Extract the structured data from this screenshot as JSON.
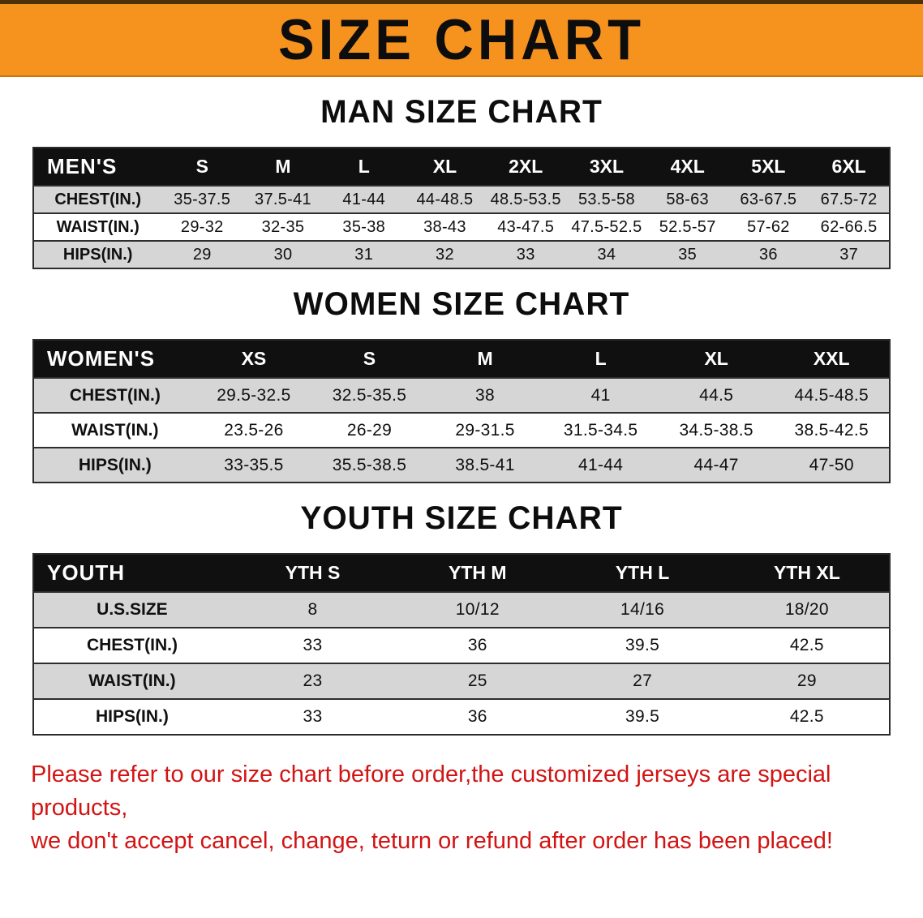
{
  "banner": {
    "title": "SIZE CHART",
    "bg_color": "#f6921e"
  },
  "sections": [
    {
      "heading": "MAN SIZE CHART",
      "table": {
        "header": [
          "MEN'S",
          "S",
          "M",
          "L",
          "XL",
          "2XL",
          "3XL",
          "4XL",
          "5XL",
          "6XL"
        ],
        "rows": [
          [
            "CHEST(IN.)",
            "35-37.5",
            "37.5-41",
            "41-44",
            "44-48.5",
            "48.5-53.5",
            "53.5-58",
            "58-63",
            "63-67.5",
            "67.5-72"
          ],
          [
            "WAIST(IN.)",
            "29-32",
            "32-35",
            "35-38",
            "38-43",
            "43-47.5",
            "47.5-52.5",
            "52.5-57",
            "57-62",
            "62-66.5"
          ],
          [
            "HIPS(IN.)",
            "29",
            "30",
            "31",
            "32",
            "33",
            "34",
            "35",
            "36",
            "37"
          ]
        ]
      }
    },
    {
      "heading": "WOMEN SIZE CHART",
      "table": {
        "header": [
          "WOMEN'S",
          "XS",
          "S",
          "M",
          "L",
          "XL",
          "XXL"
        ],
        "rows": [
          [
            "CHEST(IN.)",
            "29.5-32.5",
            "32.5-35.5",
            "38",
            "41",
            "44.5",
            "44.5-48.5"
          ],
          [
            "WAIST(IN.)",
            "23.5-26",
            "26-29",
            "29-31.5",
            "31.5-34.5",
            "34.5-38.5",
            "38.5-42.5"
          ],
          [
            "HIPS(IN.)",
            "33-35.5",
            "35.5-38.5",
            "38.5-41",
            "41-44",
            "44-47",
            "47-50"
          ]
        ]
      }
    },
    {
      "heading": "YOUTH SIZE CHART",
      "table": {
        "header": [
          "YOUTH",
          "YTH S",
          "YTH M",
          "YTH L",
          "YTH XL"
        ],
        "rows": [
          [
            "U.S.SIZE",
            "8",
            "10/12",
            "14/16",
            "18/20"
          ],
          [
            "CHEST(IN.)",
            "33",
            "36",
            "39.5",
            "42.5"
          ],
          [
            "WAIST(IN.)",
            "23",
            "25",
            "27",
            "29"
          ],
          [
            "HIPS(IN.)",
            "33",
            "36",
            "39.5",
            "42.5"
          ]
        ]
      }
    }
  ],
  "disclaimer": {
    "color": "#d21414",
    "lines": [
      "Please refer to our size chart before order,the customized jerseys are special products,",
      "we don't accept cancel, change, teturn or refund after order has been placed!"
    ]
  }
}
